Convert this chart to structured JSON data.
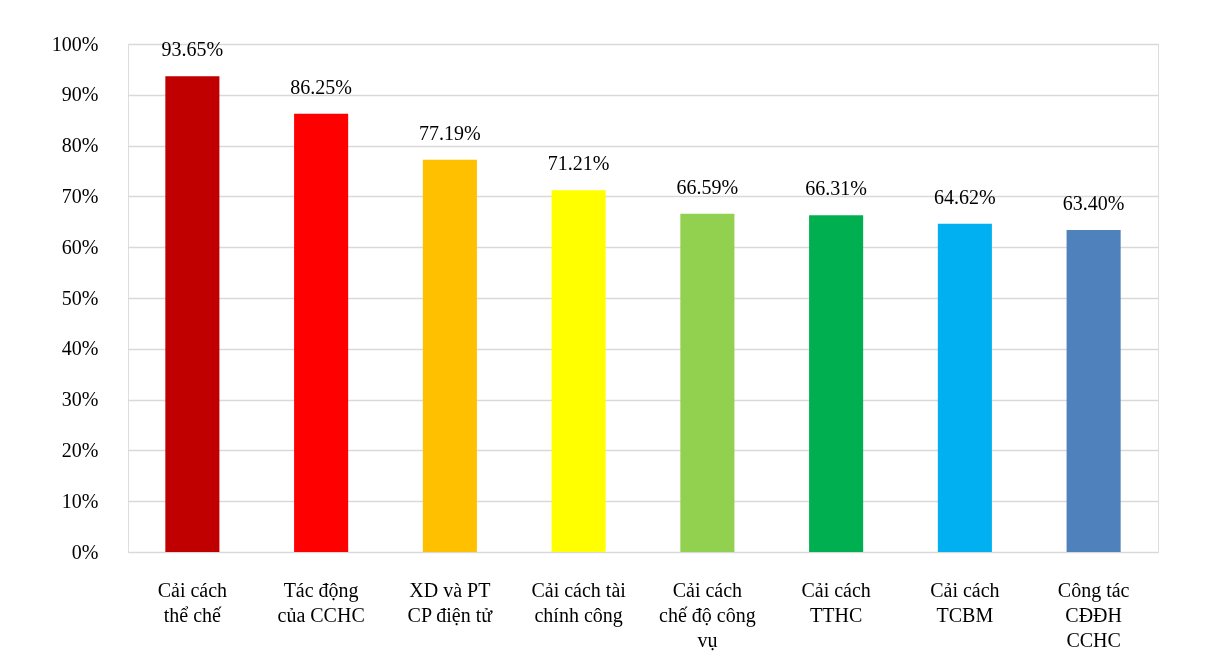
{
  "chart_data": {
    "type": "bar",
    "categories": [
      "Cải cách\nthể chế",
      "Tác động\ncủa CCHC",
      "XD và PT\nCP điện tử",
      "Cải cách tài\nchính công",
      "Cải cách\nchế độ công\nvụ",
      "Cải cách\nTTHC",
      "Cải cách\nTCBM",
      "Công tác\nCĐĐH\nCCHC"
    ],
    "values": [
      93.65,
      86.25,
      77.19,
      71.21,
      66.59,
      66.31,
      64.62,
      63.4
    ],
    "colors": [
      "#c00000",
      "#ff0000",
      "#ffc000",
      "#ffff00",
      "#92d050",
      "#00b050",
      "#00b0f0",
      "#4f81bd"
    ],
    "value_labels": [
      "93.65%",
      "86.25%",
      "77.19%",
      "71.21%",
      "66.59%",
      "66.31%",
      "64.62%",
      "63.40%"
    ],
    "ylim": [
      0,
      100
    ],
    "yticks": [
      {
        "value": 0,
        "label": "0%"
      },
      {
        "value": 10,
        "label": "10%"
      },
      {
        "value": 20,
        "label": "20%"
      },
      {
        "value": 30,
        "label": "30%"
      },
      {
        "value": 40,
        "label": "40%"
      },
      {
        "value": 50,
        "label": "50%"
      },
      {
        "value": 60,
        "label": "60%"
      },
      {
        "value": 70,
        "label": "70%"
      },
      {
        "value": 80,
        "label": "80%"
      },
      {
        "value": 90,
        "label": "90%"
      },
      {
        "value": 100,
        "label": "100%"
      }
    ],
    "grid": "y"
  }
}
